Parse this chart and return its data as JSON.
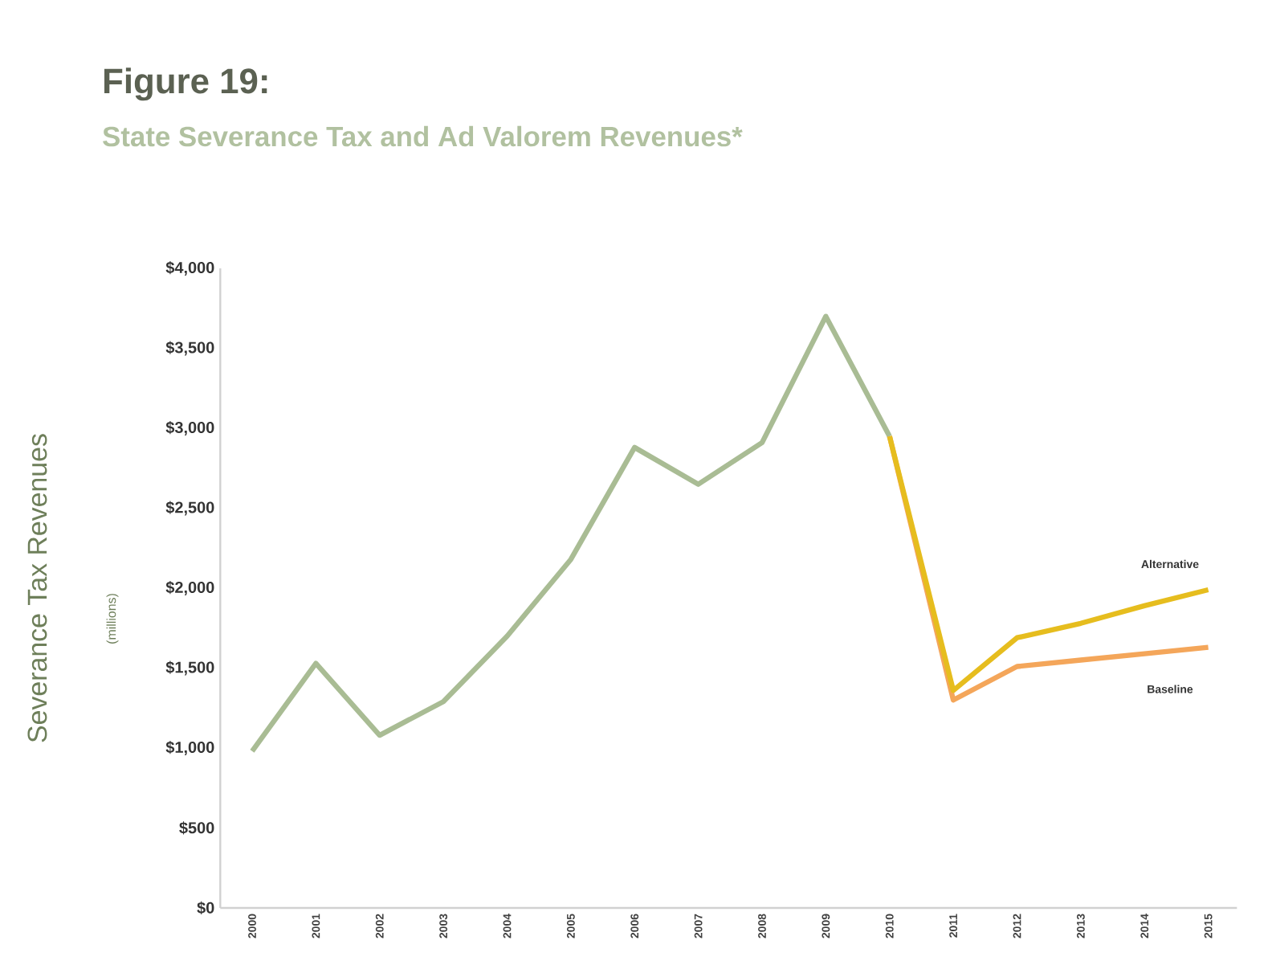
{
  "chart_data": {
    "type": "line",
    "title": "Figure 19:",
    "subtitle": "State Severance Tax and Ad Valorem Revenues*",
    "ylabel": "Severance Tax Revenues",
    "annotations": [
      "(millions)"
    ],
    "categories": [
      "2000",
      "2001",
      "2002",
      "2003",
      "2004",
      "2005",
      "2006",
      "2007",
      "2008",
      "2009",
      "2010",
      "2011",
      "2012",
      "2013",
      "2014",
      "2015"
    ],
    "series": [
      {
        "color": "#a9bc94",
        "values": [
          980,
          1530,
          1080,
          1290,
          1700,
          2180,
          2880,
          2650,
          2910,
          3700,
          2950,
          null,
          null,
          null,
          null,
          null
        ]
      },
      {
        "name": "Baseline",
        "color": "#f4a65a",
        "values": [
          null,
          null,
          null,
          null,
          null,
          null,
          null,
          null,
          null,
          null,
          2950,
          1300,
          1510,
          1550,
          1590,
          1630
        ]
      },
      {
        "name": "Alternative",
        "color": "#e6bd1e",
        "values": [
          null,
          null,
          null,
          null,
          null,
          null,
          null,
          null,
          null,
          null,
          2950,
          1360,
          1690,
          1780,
          1890,
          1990
        ]
      }
    ],
    "ylim": [
      0,
      4000
    ],
    "yticks": [
      {
        "value": 0,
        "label": "$0"
      },
      {
        "value": 500,
        "label": "$500"
      },
      {
        "value": 1000,
        "label": "$1,000"
      },
      {
        "value": 1500,
        "label": "$1,500"
      },
      {
        "value": 2000,
        "label": "$2,000"
      },
      {
        "value": 2500,
        "label": "$2,500"
      },
      {
        "value": 3000,
        "label": "$3,000"
      },
      {
        "value": 3500,
        "label": "$3,500"
      },
      {
        "value": 4000,
        "label": "$4,000"
      }
    ],
    "grid": false,
    "legend": false,
    "marker": "none",
    "line_style": "solid"
  }
}
